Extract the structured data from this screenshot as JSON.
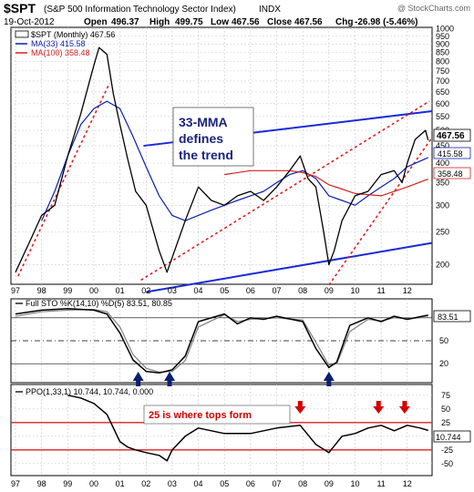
{
  "header": {
    "symbol": "$SPT",
    "name": "(S&P 500 Information Technology Sector Index)",
    "exchange": "INDX",
    "watermark": "@ StockCharts.com",
    "date": "19-Oct-2012",
    "open_label": "Open",
    "open": "496.37",
    "high_label": "High",
    "high": "499.75",
    "low_label": "Low",
    "low": "467.56",
    "close_label": "Close",
    "close": "467.56",
    "chg_label": "Chg",
    "chg": "-26.98 (-5.46%)"
  },
  "colors": {
    "price": "#000000",
    "ma33": "#0b1fb0",
    "ma100": "#d42020",
    "trendline_blue": "#1a2ad8",
    "trendline_red": "#e02020",
    "annotation_text": "#1a237e",
    "red_label": "#d40000",
    "arrow_up": "#0b1f6e"
  },
  "chart_data": [
    {
      "type": "line",
      "title": "$SPT (Monthly) 467.56",
      "x_ticks": [
        "97",
        "98",
        "99",
        "00",
        "01",
        "02",
        "03",
        "04",
        "05",
        "06",
        "07",
        "08",
        "09",
        "10",
        "11",
        "12"
      ],
      "y_scale": "log",
      "y_ticks": [
        200,
        250,
        300,
        350,
        400,
        450,
        500,
        550,
        600,
        650,
        700,
        750,
        800,
        850,
        900,
        950,
        1000
      ],
      "legend": [
        {
          "name": "$SPT (Monthly) 467.56",
          "color": "#000000"
        },
        {
          "name": "MA(33) 415.58",
          "color": "#0b1fb0"
        },
        {
          "name": "MA(100) 358.48",
          "color": "#d42020"
        }
      ],
      "value_labels": [
        {
          "text": "467.56",
          "series": "price"
        },
        {
          "text": "415.58",
          "series": "ma33"
        },
        {
          "text": "358.48",
          "series": "ma100"
        }
      ],
      "annotation": [
        "33-MMA",
        "defines",
        "the trend"
      ],
      "series": [
        {
          "name": "$SPT (Monthly)",
          "x": [
            1997.0,
            1997.5,
            1998.0,
            1998.5,
            1999.0,
            1999.5,
            2000.0,
            2000.2,
            2000.5,
            2000.75,
            2001.0,
            2001.3,
            2001.6,
            2002.0,
            2002.5,
            2002.8,
            2003.0,
            2003.5,
            2004.0,
            2004.5,
            2005.0,
            2005.5,
            2006.0,
            2006.5,
            2007.0,
            2007.5,
            2007.9,
            2008.2,
            2008.5,
            2008.8,
            2009.0,
            2009.2,
            2009.5,
            2010.0,
            2010.5,
            2011.0,
            2011.5,
            2011.8,
            2012.0,
            2012.3,
            2012.7,
            2012.8
          ],
          "values": [
            190,
            230,
            280,
            300,
            420,
            560,
            780,
            880,
            840,
            640,
            520,
            410,
            330,
            300,
            220,
            190,
            210,
            270,
            340,
            310,
            300,
            320,
            330,
            310,
            340,
            380,
            420,
            360,
            340,
            250,
            200,
            220,
            270,
            320,
            330,
            370,
            380,
            350,
            400,
            470,
            500,
            467.56
          ]
        },
        {
          "name": "MA(33)",
          "x": [
            1998.0,
            1998.5,
            1999.0,
            1999.5,
            2000.0,
            2000.5,
            2001.0,
            2001.5,
            2002.0,
            2002.5,
            2003.0,
            2003.5,
            2004.0,
            2004.5,
            2005.0,
            2005.5,
            2006.0,
            2006.5,
            2007.0,
            2007.5,
            2008.0,
            2008.5,
            2009.0,
            2009.5,
            2010.0,
            2010.5,
            2011.0,
            2011.5,
            2012.0,
            2012.8
          ],
          "values": [
            270,
            330,
            420,
            520,
            580,
            610,
            580,
            480,
            390,
            320,
            280,
            270,
            280,
            290,
            300,
            310,
            320,
            330,
            350,
            370,
            380,
            360,
            320,
            310,
            300,
            320,
            340,
            360,
            390,
            415.58
          ]
        },
        {
          "name": "MA(100)",
          "x": [
            2005.0,
            2006.0,
            2007.0,
            2007.5,
            2008.0,
            2008.5,
            2009.0,
            2009.5,
            2010.0,
            2011.0,
            2012.0,
            2012.8
          ],
          "values": [
            370,
            380,
            380,
            380,
            375,
            365,
            345,
            335,
            325,
            320,
            340,
            358.48
          ]
        }
      ]
    },
    {
      "type": "line",
      "title": "Full STO %K(14,10) %D(5) 83.51, 80.85",
      "y_ticks": [
        80,
        50,
        20
      ],
      "value_labels": [
        {
          "text": "83.51"
        }
      ],
      "series": [
        {
          "name": "%K(14,10)",
          "x": [
            1997.0,
            1998.0,
            1999.0,
            2000.0,
            2000.5,
            2001.0,
            2001.5,
            2002.0,
            2002.5,
            2003.0,
            2003.5,
            2004.0,
            2005.0,
            2005.5,
            2006.0,
            2006.5,
            2007.0,
            2008.0,
            2008.5,
            2009.0,
            2009.3,
            2009.8,
            2010.5,
            2011.0,
            2011.5,
            2012.0,
            2012.8
          ],
          "values": [
            85,
            90,
            92,
            90,
            85,
            60,
            25,
            10,
            8,
            12,
            30,
            75,
            85,
            72,
            80,
            78,
            82,
            75,
            40,
            15,
            22,
            70,
            80,
            75,
            82,
            78,
            83.51
          ]
        },
        {
          "name": "%D(5)",
          "x": [
            1997.0,
            1998.0,
            1999.0,
            2000.0,
            2000.5,
            2001.0,
            2001.5,
            2002.0,
            2002.5,
            2003.0,
            2003.5,
            2004.0,
            2005.0,
            2005.5,
            2006.0,
            2006.5,
            2007.0,
            2008.0,
            2008.5,
            2009.0,
            2009.3,
            2009.8,
            2010.5,
            2011.0,
            2011.5,
            2012.0,
            2012.8
          ],
          "values": [
            82,
            88,
            90,
            91,
            88,
            68,
            32,
            14,
            9,
            10,
            24,
            68,
            84,
            75,
            78,
            79,
            80,
            77,
            48,
            18,
            20,
            62,
            78,
            76,
            80,
            79,
            80.85
          ]
        }
      ]
    },
    {
      "type": "line",
      "title": "PPO(1,33,1) 10.744, 10.744, 0.000",
      "y_ticks": [
        75,
        50,
        25,
        0,
        -25,
        -50
      ],
      "value_labels": [
        {
          "text": "10.744"
        }
      ],
      "annotation": "25 is where tops form",
      "series": [
        {
          "name": "PPO(1,33,1)",
          "x": [
            1999.0,
            1999.5,
            2000.0,
            2000.5,
            2001.0,
            2001.3,
            2001.6,
            2002.0,
            2002.5,
            2002.8,
            2003.0,
            2003.5,
            2004.0,
            2005.0,
            2006.0,
            2007.0,
            2007.9,
            2008.5,
            2009.0,
            2009.5,
            2010.0,
            2010.5,
            2011.0,
            2011.5,
            2012.0,
            2012.5,
            2012.8
          ],
          "values": [
            75,
            70,
            60,
            40,
            -10,
            -20,
            -25,
            -30,
            -35,
            -45,
            -25,
            0,
            15,
            5,
            5,
            15,
            20,
            -15,
            -30,
            0,
            5,
            15,
            20,
            10,
            20,
            15,
            10.744
          ]
        }
      ]
    }
  ]
}
